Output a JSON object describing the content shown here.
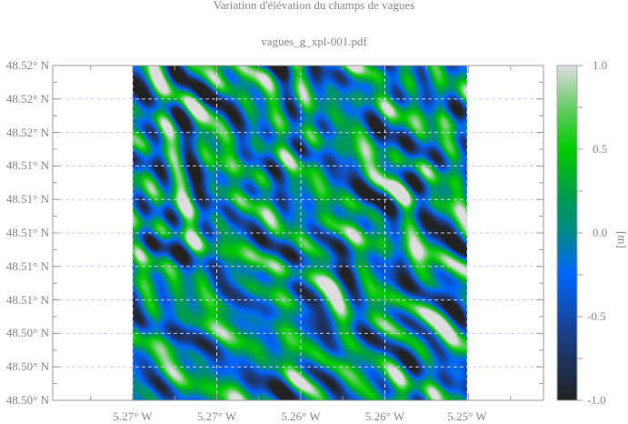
{
  "chart_data": {
    "type": "heatmap",
    "title": "Variation d'élévation du champs de vagues",
    "subtitle": "vagues_g_xpl-001.pdf",
    "x_tick_labels": [
      "5.27° W",
      "5.27° W",
      "5.26° W",
      "5.26° W",
      "5.25° W"
    ],
    "y_tick_labels": [
      "48.52° N",
      "48.52° N",
      "48.52° N",
      "48.51° N",
      "48.51° N",
      "48.51° N",
      "48.51° N",
      "48.51° N",
      "48.50° N",
      "48.50° N",
      "48.50° N"
    ],
    "grid": true,
    "colorbar": {
      "label": "[m]",
      "range": [
        -1.0,
        1.0
      ],
      "tick_labels": [
        "1.0",
        "0.5",
        "0.0",
        "-0.5",
        "-1.0"
      ],
      "tick_values": [
        1.0,
        0.5,
        0.0,
        -0.5,
        -1.0
      ],
      "stops": [
        {
          "value": -1.0,
          "color": "#222222"
        },
        {
          "value": -0.6,
          "color": "#1a3f8a"
        },
        {
          "value": -0.25,
          "color": "#0066ff"
        },
        {
          "value": 0.0,
          "color": "#008a8a"
        },
        {
          "value": 0.25,
          "color": "#00a044"
        },
        {
          "value": 0.5,
          "color": "#00cc00"
        },
        {
          "value": 0.75,
          "color": "#66cc66"
        },
        {
          "value": 1.0,
          "color": "#dddddd"
        }
      ]
    }
  }
}
